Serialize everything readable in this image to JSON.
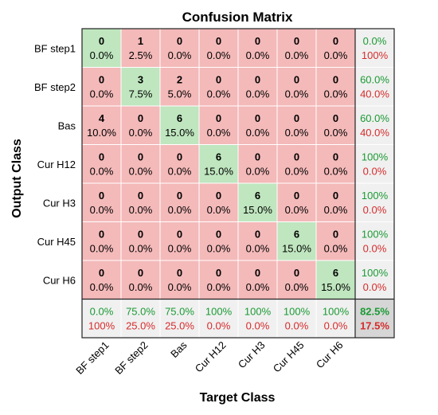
{
  "chart_data": {
    "type": "heatmap",
    "title": "Confusion Matrix",
    "xlabel": "Target Class",
    "ylabel": "Output Class",
    "classes": [
      "BF step1",
      "BF step2",
      "Bas",
      "Cur H12",
      "Cur H3",
      "Cur H45",
      "Cur H6"
    ],
    "counts": [
      [
        0,
        1,
        0,
        0,
        0,
        0,
        0
      ],
      [
        0,
        3,
        2,
        0,
        0,
        0,
        0
      ],
      [
        4,
        0,
        6,
        0,
        0,
        0,
        0
      ],
      [
        0,
        0,
        0,
        6,
        0,
        0,
        0
      ],
      [
        0,
        0,
        0,
        0,
        6,
        0,
        0
      ],
      [
        0,
        0,
        0,
        0,
        0,
        6,
        0
      ],
      [
        0,
        0,
        0,
        0,
        0,
        0,
        6
      ]
    ],
    "percents": [
      [
        "0.0%",
        "2.5%",
        "0.0%",
        "0.0%",
        "0.0%",
        "0.0%",
        "0.0%"
      ],
      [
        "0.0%",
        "7.5%",
        "5.0%",
        "0.0%",
        "0.0%",
        "0.0%",
        "0.0%"
      ],
      [
        "10.0%",
        "0.0%",
        "15.0%",
        "0.0%",
        "0.0%",
        "0.0%",
        "0.0%"
      ],
      [
        "0.0%",
        "0.0%",
        "0.0%",
        "15.0%",
        "0.0%",
        "0.0%",
        "0.0%"
      ],
      [
        "0.0%",
        "0.0%",
        "0.0%",
        "0.0%",
        "15.0%",
        "0.0%",
        "0.0%"
      ],
      [
        "0.0%",
        "0.0%",
        "0.0%",
        "0.0%",
        "0.0%",
        "15.0%",
        "0.0%"
      ],
      [
        "0.0%",
        "0.0%",
        "0.0%",
        "0.0%",
        "0.0%",
        "0.0%",
        "15.0%"
      ]
    ],
    "row_summary": [
      {
        "correct": "0.0%",
        "wrong": "100%"
      },
      {
        "correct": "60.0%",
        "wrong": "40.0%"
      },
      {
        "correct": "60.0%",
        "wrong": "40.0%"
      },
      {
        "correct": "100%",
        "wrong": "0.0%"
      },
      {
        "correct": "100%",
        "wrong": "0.0%"
      },
      {
        "correct": "100%",
        "wrong": "0.0%"
      },
      {
        "correct": "100%",
        "wrong": "0.0%"
      }
    ],
    "col_summary": [
      {
        "correct": "0.0%",
        "wrong": "100%"
      },
      {
        "correct": "75.0%",
        "wrong": "25.0%"
      },
      {
        "correct": "75.0%",
        "wrong": "25.0%"
      },
      {
        "correct": "100%",
        "wrong": "0.0%"
      },
      {
        "correct": "100%",
        "wrong": "0.0%"
      },
      {
        "correct": "100%",
        "wrong": "0.0%"
      },
      {
        "correct": "100%",
        "wrong": "0.0%"
      }
    ],
    "overall": {
      "correct": "82.5%",
      "wrong": "17.5%"
    },
    "colors": {
      "correct_fill": "#bfe6bf",
      "wrong_fill": "#f4b9b9",
      "summary_fill": "#f0f0f0",
      "overall_fill": "#d6d6d6",
      "correct_text": "#1a9a33",
      "wrong_text": "#d62b2b"
    }
  }
}
